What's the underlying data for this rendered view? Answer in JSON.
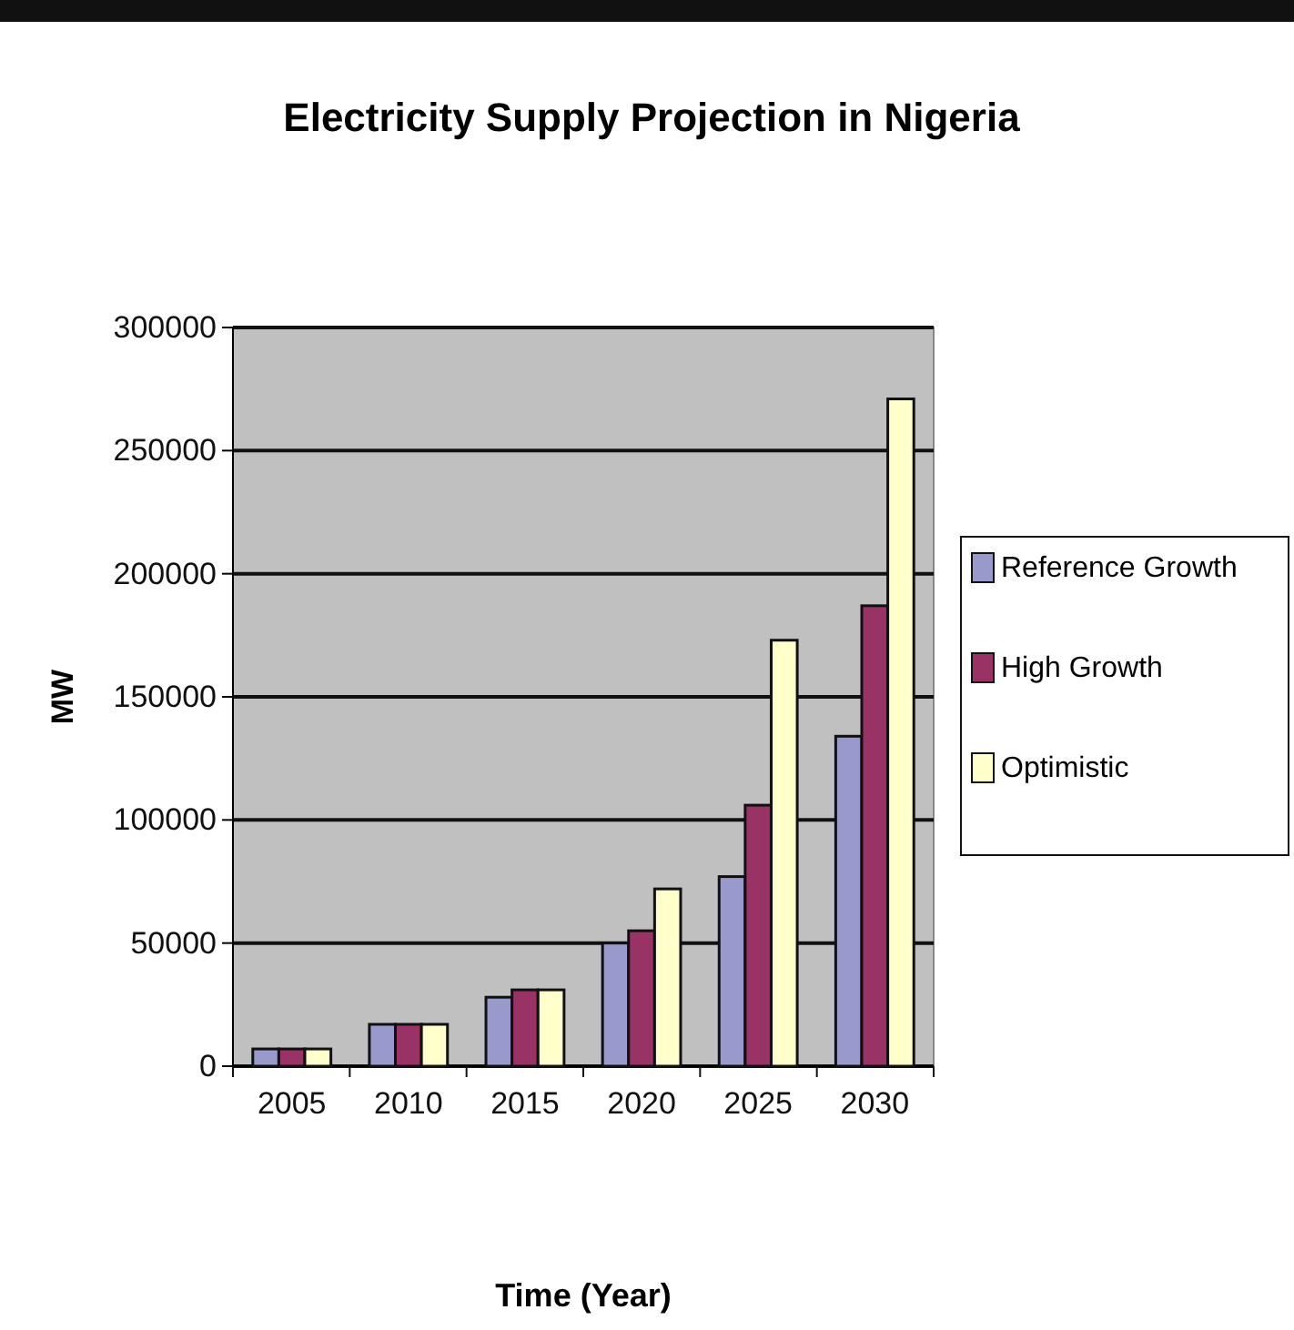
{
  "chart_data": {
    "type": "bar",
    "title": "Electricity Supply Projection in Nigeria",
    "xlabel": "Time (Year)",
    "ylabel": "MW",
    "categories": [
      "2005",
      "2010",
      "2015",
      "2020",
      "2025",
      "2030"
    ],
    "series": [
      {
        "name": "Reference Growth",
        "color": "#9999cc",
        "values": [
          7000,
          17000,
          28000,
          50000,
          77000,
          134000
        ]
      },
      {
        "name": "High Growth",
        "color": "#993366",
        "values": [
          7000,
          17000,
          31000,
          55000,
          106000,
          187000
        ]
      },
      {
        "name": "Optimistic",
        "color": "#ffffcc",
        "values": [
          7000,
          17000,
          31000,
          72000,
          173000,
          271000
        ]
      }
    ],
    "ylim": [
      0,
      300000
    ],
    "yticks": [
      0,
      50000,
      100000,
      150000,
      200000,
      250000,
      300000
    ],
    "grid": "y",
    "legend": "right"
  }
}
